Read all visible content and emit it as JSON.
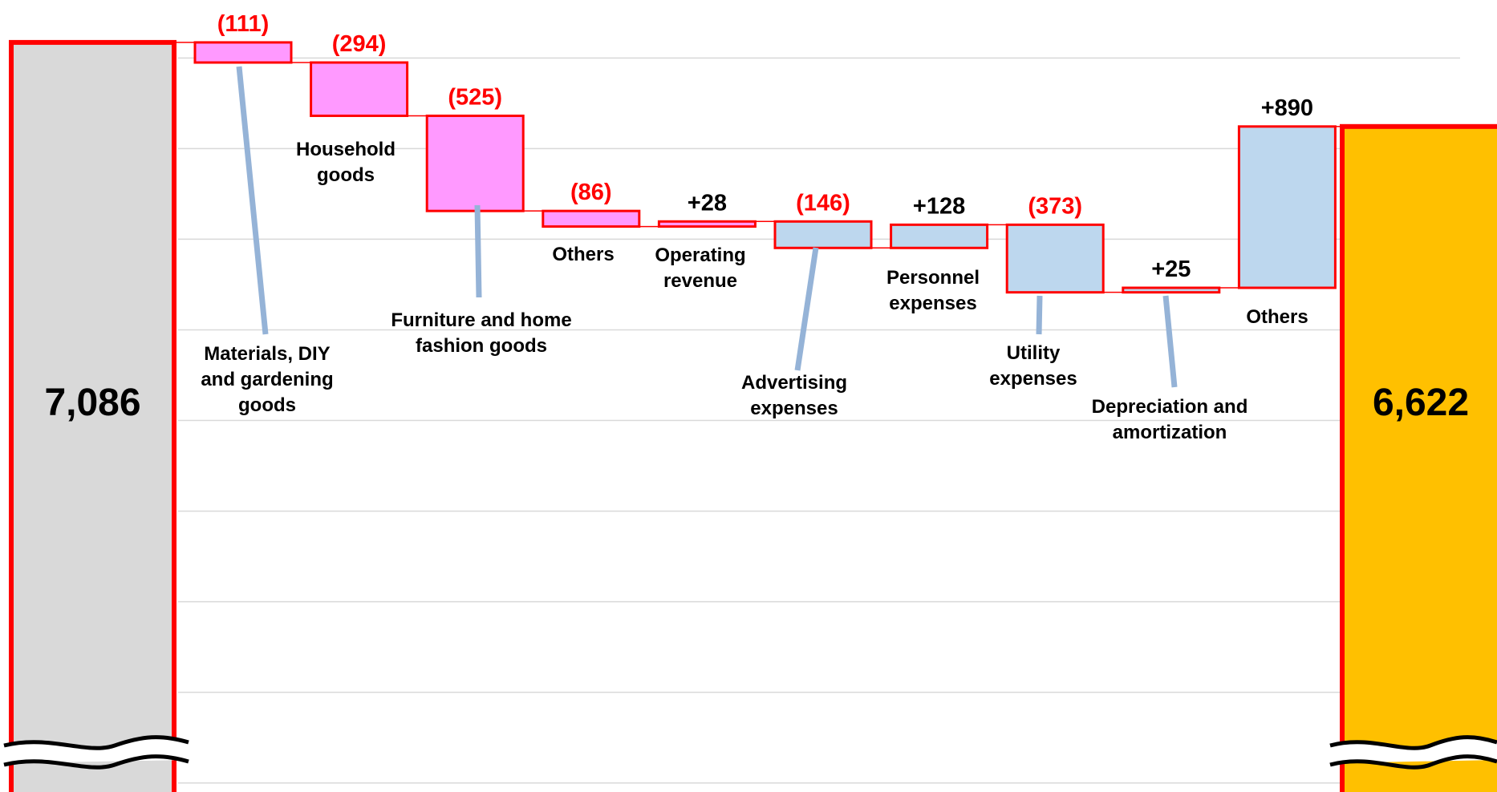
{
  "chart_data": {
    "type": "waterfall",
    "categories": [
      null,
      "Materials, DIY and gardening goods",
      "Household goods",
      "Furniture and home fashion goods",
      "Others",
      "Operating revenue",
      "Advertising expenses",
      "Personnel expenses",
      "Utility expenses",
      "Depreciation and amortization",
      "Others",
      null
    ],
    "measures": [
      "absolute",
      "relative",
      "relative",
      "relative",
      "relative",
      "relative",
      "relative",
      "relative",
      "relative",
      "relative",
      "relative",
      "total"
    ],
    "values": [
      7086,
      -111,
      -294,
      -525,
      -86,
      28,
      -146,
      128,
      -373,
      25,
      890,
      6622
    ],
    "value_labels": [
      "7,086",
      "(111)",
      "(294)",
      "(525)",
      "(86)",
      "+28",
      "(146)",
      "+128",
      "(373)",
      "+25",
      "+890",
      "6,622"
    ],
    "colors": [
      "#d9d9d9",
      "#ff99ff",
      "#ff99ff",
      "#ff99ff",
      "#ff99ff",
      "#ff99ff",
      "#bdd7ee",
      "#bdd7ee",
      "#bdd7ee",
      "#bdd7ee",
      "#bdd7ee",
      "#ffc000"
    ],
    "border_color": "#ff0000",
    "ylim": [
      2950,
      7320
    ],
    "yticks": [
      7000,
      6500,
      6000,
      5500,
      5000,
      4500,
      4000,
      3500,
      3000
    ],
    "grid": true,
    "broken_axis": true
  }
}
